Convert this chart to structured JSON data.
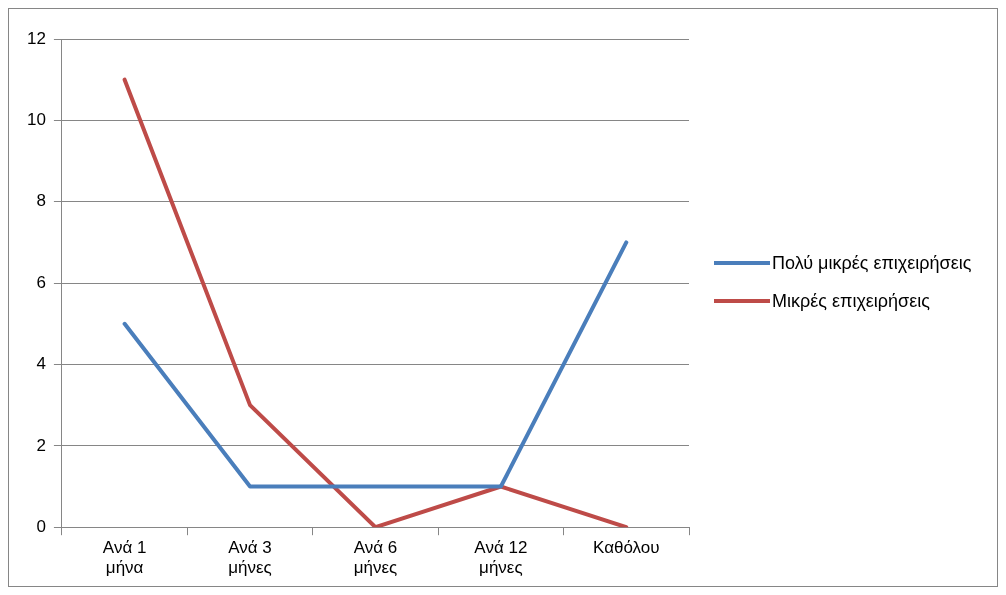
{
  "chart_data": {
    "type": "line",
    "categories": [
      "Ανά 1 μήνα",
      "Ανά 3 μήνες",
      "Ανά 6 μήνες",
      "Ανά 12 μήνες",
      "Καθόλου"
    ],
    "series": [
      {
        "name": "Πολύ μικρές επιχειρήσεις",
        "color": "#4a7ebb",
        "values": [
          5,
          1,
          1,
          1,
          7
        ]
      },
      {
        "name": "Μικρές επιχειρήσεις",
        "color": "#be4b48",
        "values": [
          11,
          3,
          0,
          1,
          0
        ]
      }
    ],
    "ylim": [
      0,
      12
    ],
    "yticks": [
      0,
      2,
      4,
      6,
      8,
      10,
      12
    ],
    "grid": "y",
    "legend": "right",
    "marker": "none",
    "line_style": "solid"
  }
}
